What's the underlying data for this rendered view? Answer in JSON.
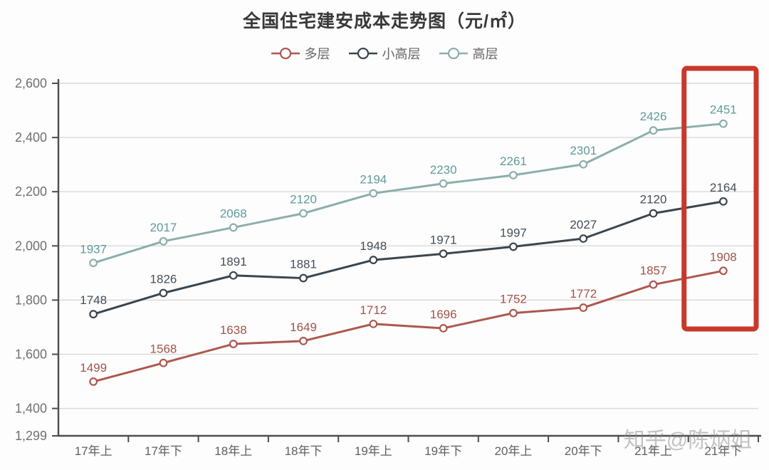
{
  "chart": {
    "title": "全国住宅建安成本走势图（元/㎡）",
    "watermark": "知乎@陈炳姐"
  },
  "chart_data": {
    "type": "line",
    "title": "全国住宅建安成本走势图（元/㎡）",
    "categories": [
      "17年上",
      "17年下",
      "18年上",
      "18年下",
      "19年上",
      "19年下",
      "20年上",
      "20年下",
      "21年上",
      "21年下"
    ],
    "series": [
      {
        "key": "duoceng",
        "name": "多层",
        "line_color": "#ac584f",
        "label_color": "#a3524a",
        "values": [
          1499,
          1568,
          1638,
          1649,
          1712,
          1696,
          1752,
          1772,
          1857,
          1908
        ]
      },
      {
        "key": "xiaogaoceng",
        "name": "小高层",
        "line_color": "#3b454d",
        "label_color": "#454e57",
        "values": [
          1748,
          1826,
          1891,
          1881,
          1948,
          1971,
          1997,
          2027,
          2120,
          2164
        ]
      },
      {
        "key": "gaoceng",
        "name": "高层",
        "line_color": "#8caeac",
        "label_color": "#5f9a9b",
        "values": [
          1937,
          2017,
          2068,
          2120,
          2194,
          2230,
          2261,
          2301,
          2426,
          2451
        ]
      }
    ],
    "xlabel": "",
    "ylabel": "",
    "ylim": [
      1299,
      2600
    ],
    "yticks": [
      2600,
      2400,
      2200,
      2000,
      1800,
      1600,
      1400,
      1299
    ],
    "ytick_labels": [
      "2,600",
      "2,400",
      "2,200",
      "2,000",
      "1,800",
      "1,600",
      "1,400",
      "1,299"
    ],
    "grid": "horizontal",
    "legend_position": "top",
    "marker": "hollow-circle",
    "highlight_box": {
      "category": "21年下",
      "color": "#c9382b"
    },
    "colors": {
      "grid_line": "#d9d9d9",
      "axis_line": "#4d4d4d",
      "ytick_text": "#707070",
      "xtick_text": "#5f5f5f",
      "watermark_text": "#8a8a8a"
    }
  }
}
